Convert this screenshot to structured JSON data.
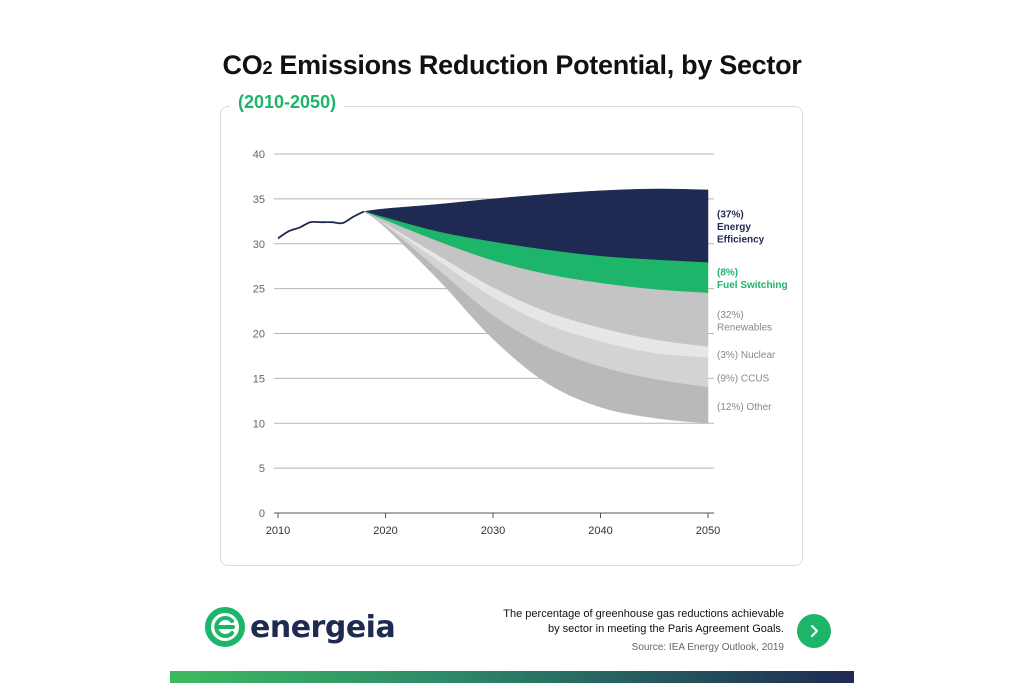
{
  "header": {
    "title_main": "CO",
    "title_sub": "2",
    "title_rest": " Emissions Reduction Potential, by Sector",
    "subtitle": "(2010-2050)"
  },
  "chart_data": {
    "type": "area",
    "title": "CO2 Emissions Reduction Potential, by Sector",
    "subtitle": "(2010-2050)",
    "xlabel": "",
    "ylabel": "",
    "xlim": [
      2010,
      2050
    ],
    "ylim": [
      0,
      40
    ],
    "x_ticks": [
      "2010",
      "2020",
      "2030",
      "2040",
      "2050"
    ],
    "y_ticks": [
      "0",
      "5",
      "10",
      "15",
      "20",
      "25",
      "30",
      "35",
      "40"
    ],
    "grid": true,
    "historical": {
      "x": [
        2010,
        2011,
        2012,
        2013,
        2014,
        2015,
        2016,
        2017,
        2018
      ],
      "y": [
        30.6,
        31.4,
        31.8,
        32.4,
        32.4,
        32.4,
        32.3,
        33.0,
        33.6
      ]
    },
    "x": [
      2018,
      2020,
      2025,
      2030,
      2035,
      2040,
      2045,
      2050
    ],
    "boundaries": [
      {
        "name": "upper",
        "values": [
          33.6,
          33.9,
          34.4,
          35.0,
          35.5,
          35.9,
          36.1,
          36.0
        ]
      },
      {
        "name": "b1",
        "values": [
          33.6,
          32.9,
          31.3,
          30.2,
          29.3,
          28.6,
          28.2,
          27.9
        ]
      },
      {
        "name": "b2",
        "values": [
          33.6,
          32.6,
          30.2,
          28.1,
          26.6,
          25.6,
          24.9,
          24.5
        ]
      },
      {
        "name": "b3",
        "values": [
          33.6,
          32.2,
          28.6,
          25.1,
          22.4,
          20.6,
          19.3,
          18.5
        ]
      },
      {
        "name": "b4",
        "values": [
          33.6,
          32.1,
          28.0,
          24.0,
          21.0,
          19.1,
          17.8,
          17.3
        ]
      },
      {
        "name": "b5",
        "values": [
          33.6,
          32.0,
          27.0,
          22.0,
          18.5,
          16.3,
          14.9,
          14.0
        ]
      },
      {
        "name": "lower",
        "values": [
          33.6,
          31.8,
          25.9,
          19.4,
          14.5,
          11.8,
          10.6,
          10.0
        ]
      }
    ],
    "bands": [
      {
        "name": "Energy Efficiency",
        "pct": "(37%)",
        "label_lines": [
          "(37%)",
          "Energy",
          "Efficiency"
        ],
        "color": "#1f2a52",
        "label_color": "#1f2a52",
        "bold": true
      },
      {
        "name": "Fuel Switching",
        "pct": "(8%)",
        "label_lines": [
          "(8%)",
          "Fuel Switching"
        ],
        "color": "#1db56a",
        "label_color": "#1db56a",
        "bold": true
      },
      {
        "name": "Renewables",
        "pct": "(32%)",
        "label_lines": [
          "(32%)",
          "Renewables"
        ],
        "color": "#c4c4c4",
        "label_color": "#888888",
        "bold": false
      },
      {
        "name": "Nuclear",
        "pct": "(3%)",
        "label_lines": [
          "(3%) Nuclear"
        ],
        "color": "#e6e6e6",
        "label_color": "#888888",
        "bold": false
      },
      {
        "name": "CCUS",
        "pct": "(9%)",
        "label_lines": [
          "(9%) CCUS"
        ],
        "color": "#d3d3d3",
        "label_color": "#888888",
        "bold": false
      },
      {
        "name": "Other",
        "pct": "(12%)",
        "label_lines": [
          "(12%) Other"
        ],
        "color": "#b9b9b9",
        "label_color": "#888888",
        "bold": false
      }
    ]
  },
  "footer": {
    "brand": "energeia",
    "caption_line1": "The percentage of greenhouse gas reductions achievable",
    "caption_line2": "by sector in meeting the Paris Agreement Goals.",
    "source": "Source: IEA Energy Outlook, 2019",
    "colors": {
      "brand_green": "#1db56a",
      "brand_navy": "#1f2a52"
    },
    "next_icon": "chevron-right-icon"
  }
}
